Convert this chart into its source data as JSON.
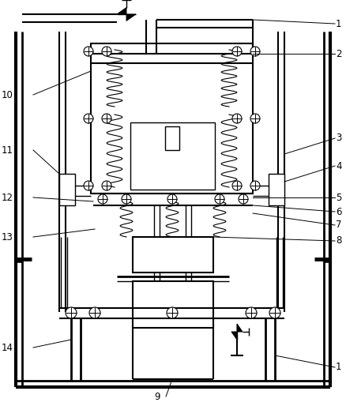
{
  "bg_color": "#ffffff",
  "line_color": "#000000",
  "fig_width": 4.38,
  "fig_height": 5.14,
  "dpi": 100
}
